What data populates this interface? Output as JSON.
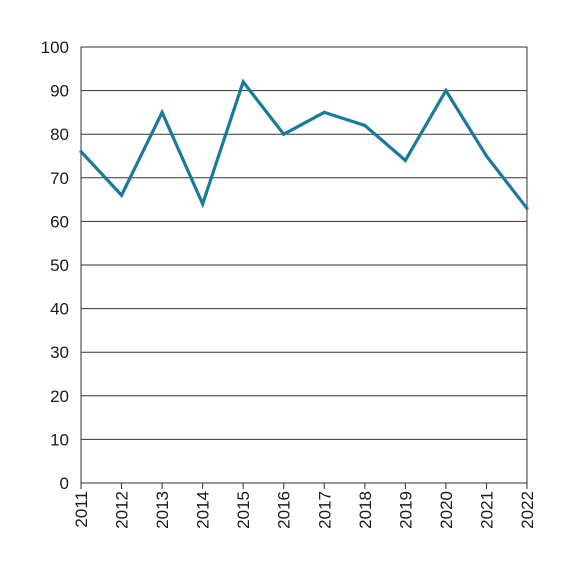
{
  "colors": {
    "series": "#1a7a9e",
    "grid": "#333333",
    "background": "#ffffff"
  },
  "chart_data": {
    "type": "line",
    "title": "",
    "xlabel": "",
    "ylabel": "",
    "x": [
      "2011",
      "2012",
      "2013",
      "2014",
      "2015",
      "2016",
      "2017",
      "2018",
      "2019",
      "2020",
      "2021",
      "2022"
    ],
    "series": [
      {
        "values": [
          76,
          66,
          85,
          64,
          92,
          80,
          85,
          82,
          74,
          90,
          75,
          63
        ]
      }
    ],
    "ylim": [
      0,
      100
    ],
    "yticks": [
      0,
      10,
      20,
      30,
      40,
      50,
      60,
      70,
      80,
      90,
      100
    ],
    "grid": "horizontal",
    "legend": "none",
    "x_tick_label_orientation": "vertical"
  }
}
